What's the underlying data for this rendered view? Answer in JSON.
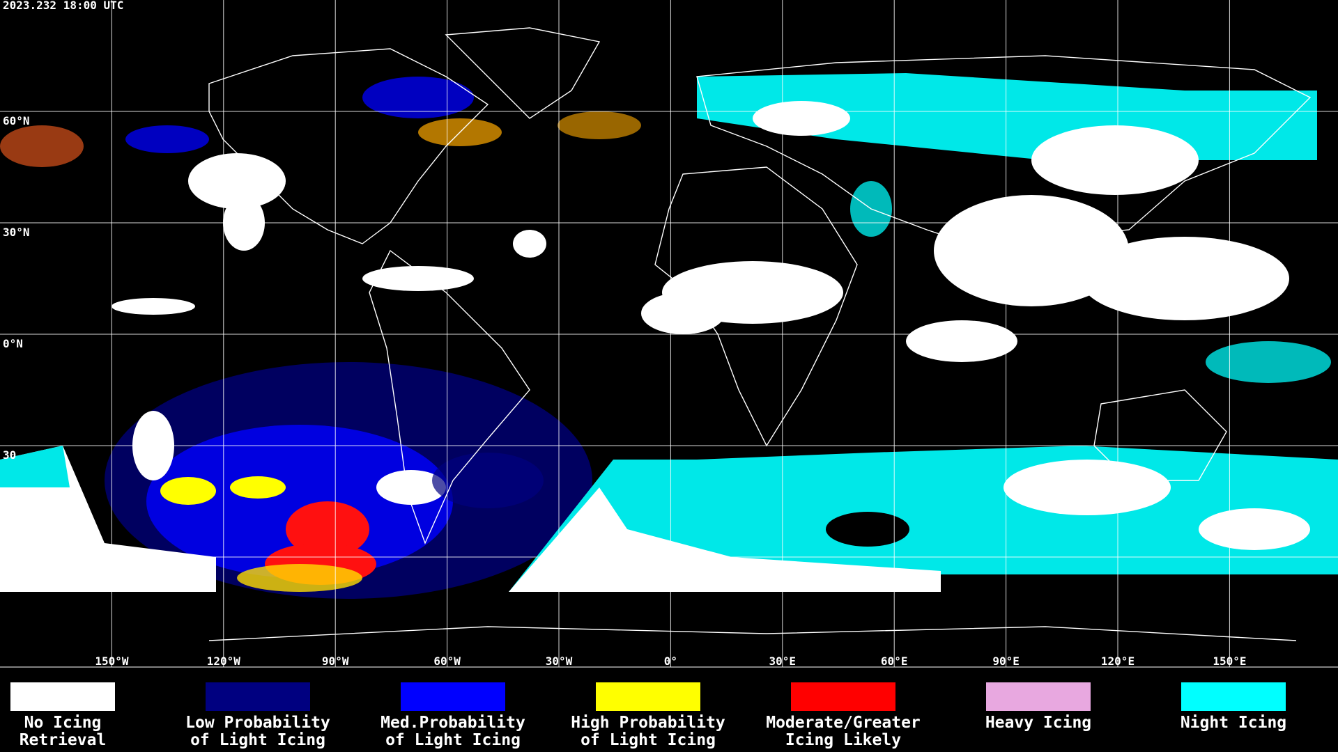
{
  "header": {
    "timestamp": "2023.232 18:00 UTC"
  },
  "map": {
    "lat_labels": [
      "60°N",
      "30°N",
      "0°N",
      "30"
    ],
    "lon_labels": [
      "150°W",
      "120°W",
      "90°W",
      "60°W",
      "30°W",
      "0°",
      "30°E",
      "60°E",
      "90°E",
      "120°E",
      "150°E"
    ]
  },
  "legend": [
    {
      "color": "#ffffff",
      "lines": [
        "No Icing",
        "Retrieval"
      ]
    },
    {
      "color": "#000080",
      "lines": [
        "Low Probability",
        "of Light Icing"
      ]
    },
    {
      "color": "#0000ff",
      "lines": [
        "Med.Probability",
        "of Light Icing"
      ]
    },
    {
      "color": "#ffff00",
      "lines": [
        "High Probability",
        "of Light Icing"
      ]
    },
    {
      "color": "#ff0000",
      "lines": [
        "Moderate/Greater",
        "Icing Likely"
      ]
    },
    {
      "color": "#e8a8e0",
      "lines": [
        "Heavy Icing"
      ]
    },
    {
      "color": "#00ffff",
      "lines": [
        "Night Icing"
      ]
    }
  ]
}
